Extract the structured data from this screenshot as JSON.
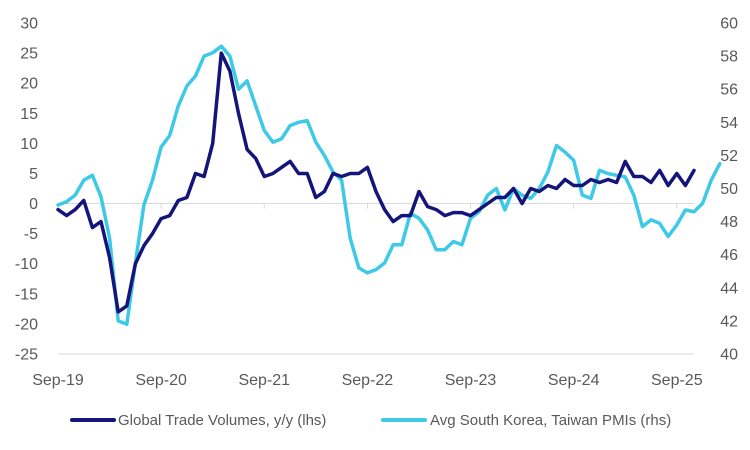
{
  "chart_data": {
    "type": "line",
    "title": "",
    "x_tick_labels": [
      "Sep-19",
      "Sep-20",
      "Sep-21",
      "Sep-22",
      "Sep-23",
      "Sep-24",
      "Sep-25"
    ],
    "x_range": [
      0,
      74
    ],
    "y_left": {
      "ticks": [
        30,
        25,
        20,
        15,
        10,
        5,
        0,
        -5,
        -10,
        -15,
        -20,
        -25
      ],
      "range": [
        -25,
        30
      ]
    },
    "y_right": {
      "ticks": [
        60,
        58,
        56,
        54,
        52,
        50,
        48,
        46,
        44,
        42,
        40
      ],
      "range": [
        40,
        60
      ]
    },
    "legend_position": "bottom",
    "series": [
      {
        "name": "Global Trade Volumes, y/y (lhs)",
        "axis": "left",
        "color": "#14147a",
        "start_month_index": 0,
        "values": [
          -1,
          -2,
          -1,
          0.5,
          -4,
          -3,
          -9,
          -18,
          -17,
          -10,
          -7,
          -5,
          -2.5,
          -2,
          0.5,
          1,
          5,
          4.5,
          10,
          25,
          22,
          15,
          9,
          7.5,
          4.5,
          5,
          6,
          7,
          5,
          5,
          1,
          2,
          5,
          4.5,
          5,
          5,
          6,
          2,
          -1,
          -3,
          -2,
          -2,
          2,
          -0.5,
          -1,
          -2,
          -1.5,
          -1.5,
          -2,
          -1,
          0,
          1,
          1,
          2.5,
          0,
          2.5,
          2,
          3,
          2.5,
          4,
          3,
          3,
          4,
          3.5,
          4,
          3.5,
          7,
          4.5,
          4.5,
          3.5,
          5.5,
          3,
          5,
          3,
          5.5
        ]
      },
      {
        "name": "Avg South Korea, Taiwan PMIs (rhs)",
        "axis": "right",
        "color": "#3ec9e6",
        "start_month_index": 0,
        "values": [
          49,
          49.2,
          49.6,
          50.5,
          50.8,
          49.5,
          47,
          42,
          41.8,
          45.5,
          49,
          50.5,
          52.5,
          53.2,
          55,
          56.2,
          56.8,
          58,
          58.2,
          58.6,
          58,
          56,
          56.5,
          55,
          53.5,
          52.8,
          53,
          53.8,
          54,
          54.1,
          52.8,
          52,
          51,
          50.5,
          47,
          45.2,
          44.9,
          45.1,
          45.5,
          46.6,
          46.6,
          48.5,
          48.2,
          47.5,
          46.3,
          46.3,
          46.8,
          46.6,
          48.2,
          48.6,
          49.6,
          50,
          48.7,
          50,
          49.6,
          49.4,
          50,
          51,
          52.6,
          52.2,
          51.7,
          49.6,
          49.4,
          51.1,
          50.9,
          50.8,
          50.7,
          49.6,
          47.7,
          48.1,
          47.9,
          47.1,
          47.8,
          48.7,
          48.6,
          49.1,
          50.5,
          51.5
        ]
      }
    ]
  }
}
